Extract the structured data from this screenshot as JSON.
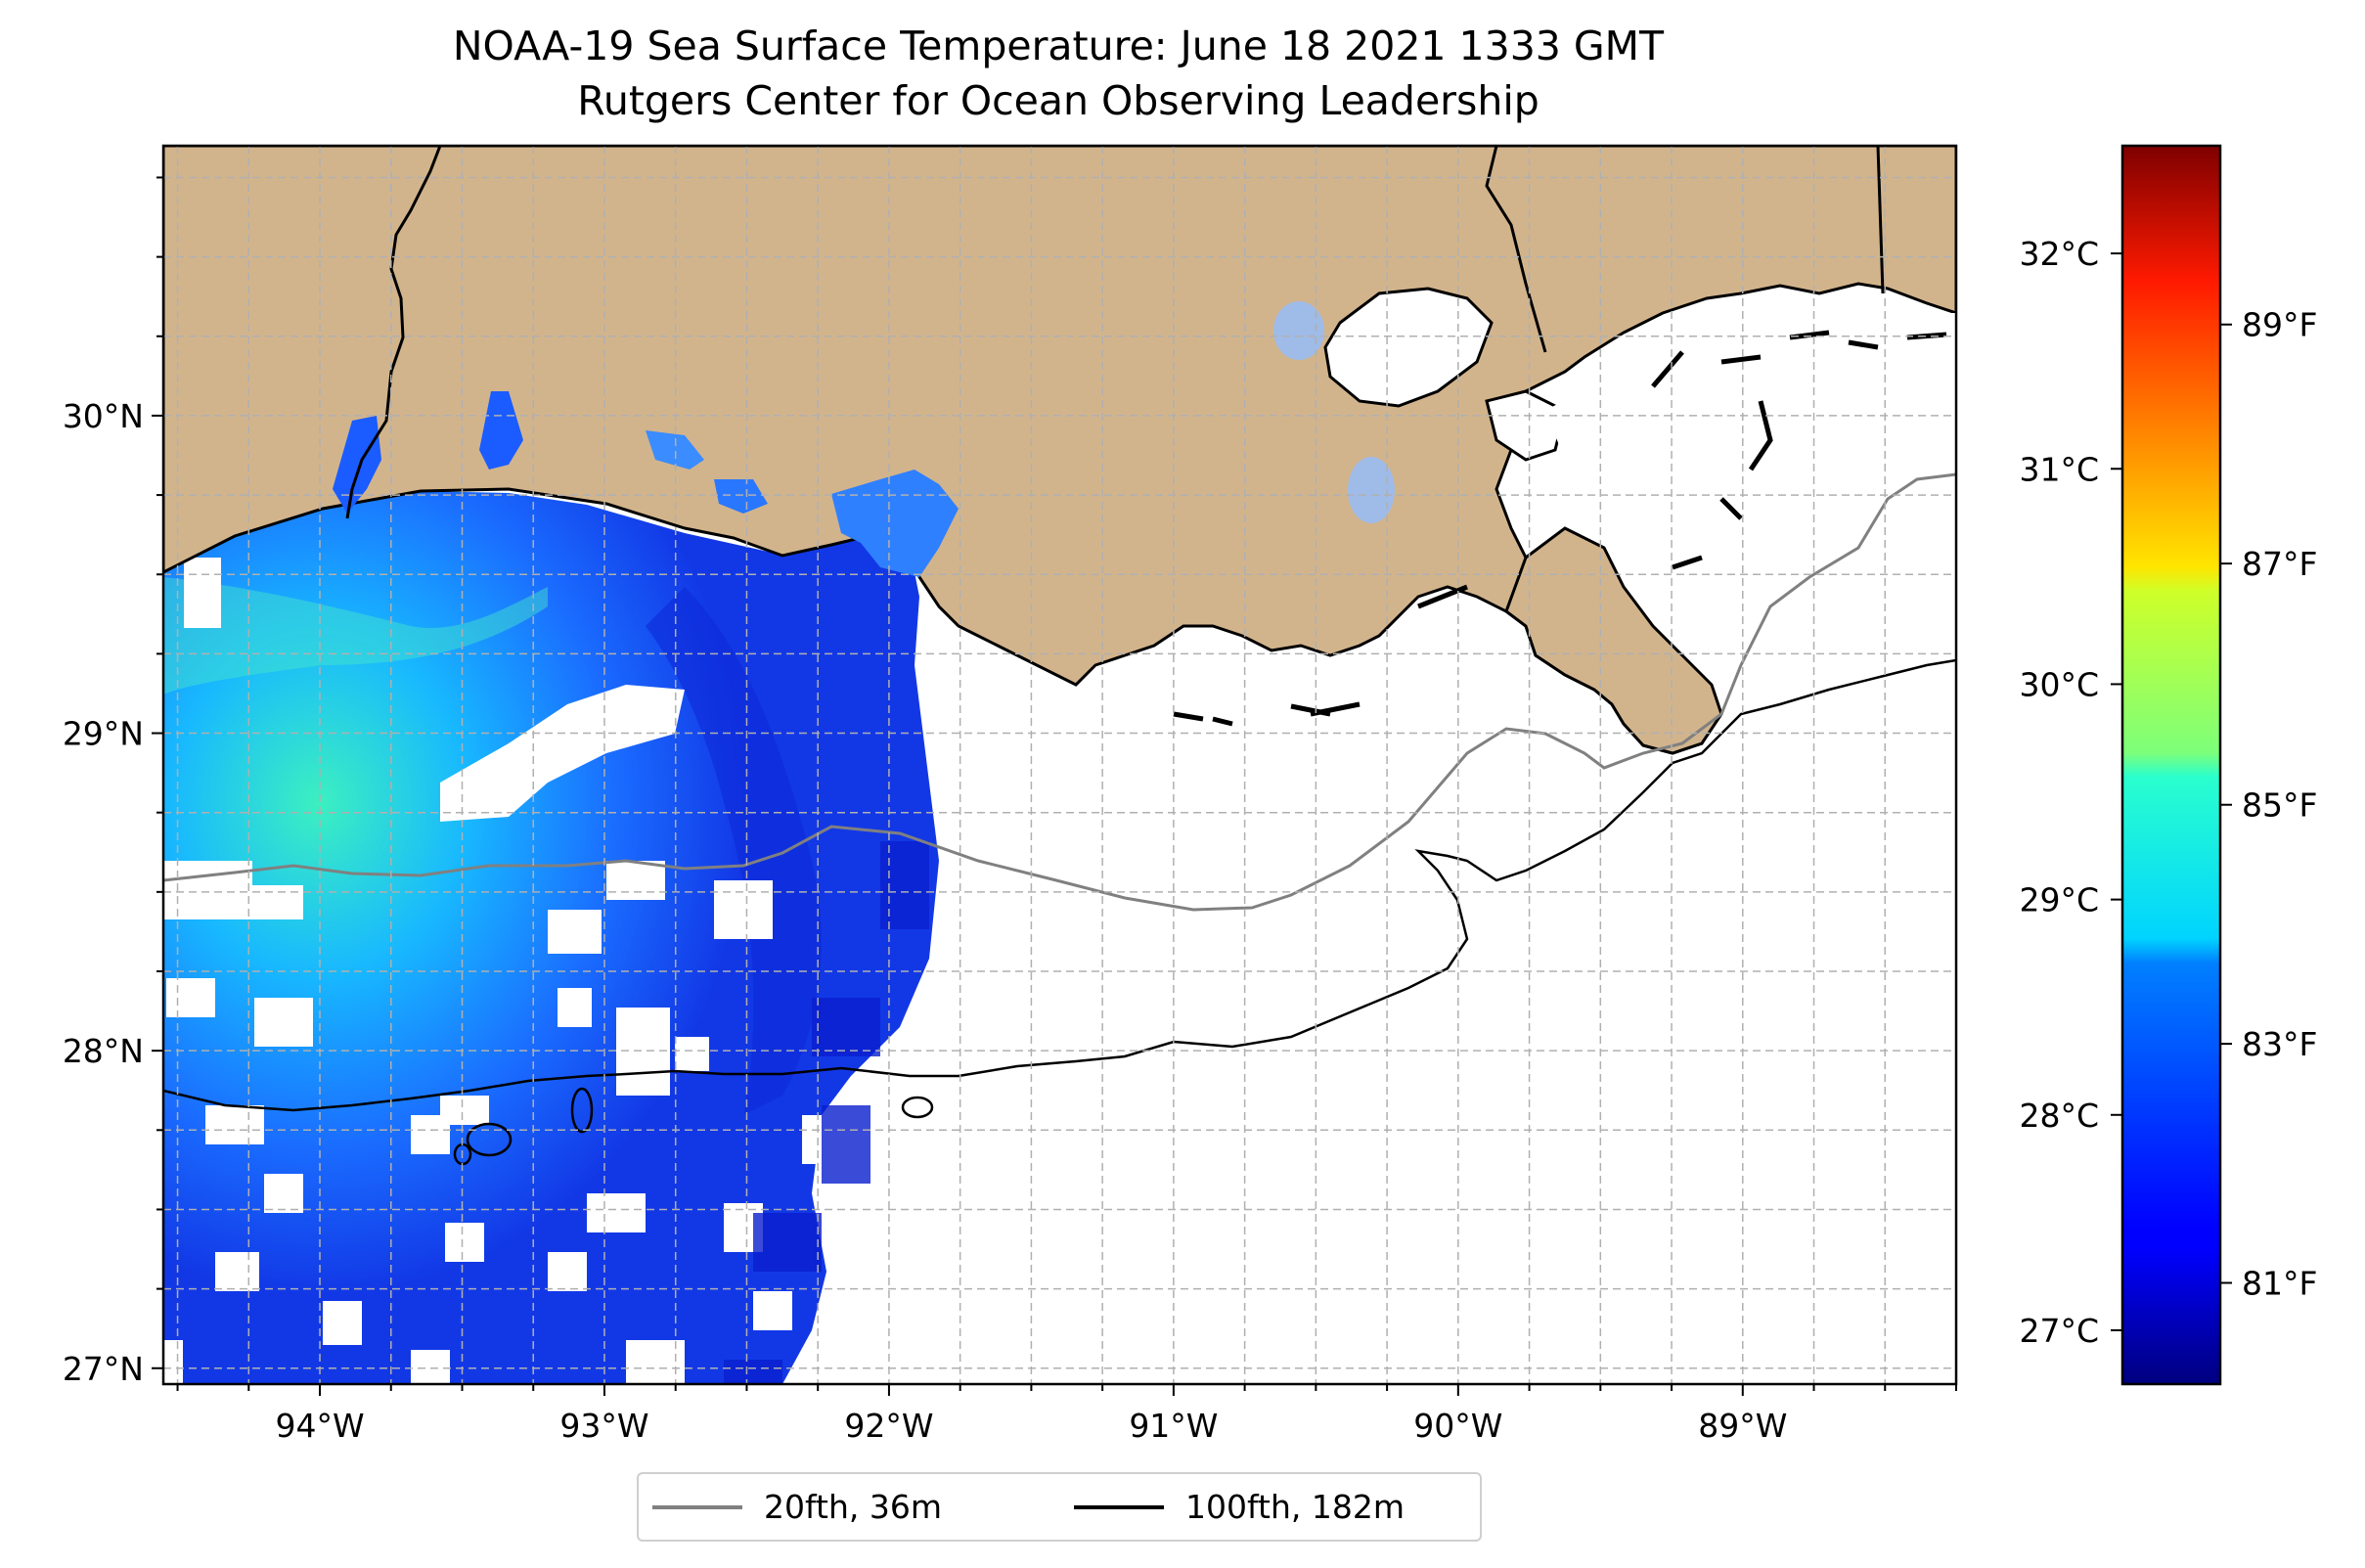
{
  "title": {
    "line1": "NOAA-19 Sea Surface Temperature: June 18 2021 1333 GMT",
    "line2": "Rutgers Center for Ocean Observing Leadership"
  },
  "map": {
    "lon_range": [
      -94.55,
      -88.25
    ],
    "lat_range": [
      26.95,
      30.85
    ],
    "lon_ticks": [
      {
        "value": -94,
        "label": "94°W"
      },
      {
        "value": -93,
        "label": "93°W"
      },
      {
        "value": -92,
        "label": "92°W"
      },
      {
        "value": -91,
        "label": "91°W"
      },
      {
        "value": -90,
        "label": "90°W"
      },
      {
        "value": -89,
        "label": "89°W"
      }
    ],
    "lat_ticks": [
      {
        "value": 27,
        "label": "27°N"
      },
      {
        "value": 28,
        "label": "28°N"
      },
      {
        "value": 29,
        "label": "29°N"
      },
      {
        "value": 30,
        "label": "30°N"
      }
    ],
    "grid": "dashed, every 0.25°",
    "colors": {
      "land": "#d2b48c",
      "lakes": "#9fbbe8",
      "isobath_20fth": "#808080",
      "isobath_100fth": "#000000"
    }
  },
  "colorbar": {
    "colormap": "jet",
    "range_c": [
      26.75,
      32.5
    ],
    "celsius_ticks": [
      {
        "value": 27,
        "label": "27°C"
      },
      {
        "value": 28,
        "label": "28°C"
      },
      {
        "value": 29,
        "label": "29°C"
      },
      {
        "value": 30,
        "label": "30°C"
      },
      {
        "value": 31,
        "label": "31°C"
      },
      {
        "value": 32,
        "label": "32°C"
      }
    ],
    "fahrenheit_ticks": [
      {
        "value_c": 27.22,
        "label": "81°F"
      },
      {
        "value_c": 28.33,
        "label": "83°F"
      },
      {
        "value_c": 29.44,
        "label": "85°F"
      },
      {
        "value_c": 30.56,
        "label": "87°F"
      },
      {
        "value_c": 31.67,
        "label": "89°F"
      }
    ]
  },
  "legend": {
    "items": [
      {
        "label": "20fth, 36m",
        "color": "#808080"
      },
      {
        "label": "100fth, 182m",
        "color": "#000000"
      }
    ],
    "placement": "bottom-center"
  }
}
